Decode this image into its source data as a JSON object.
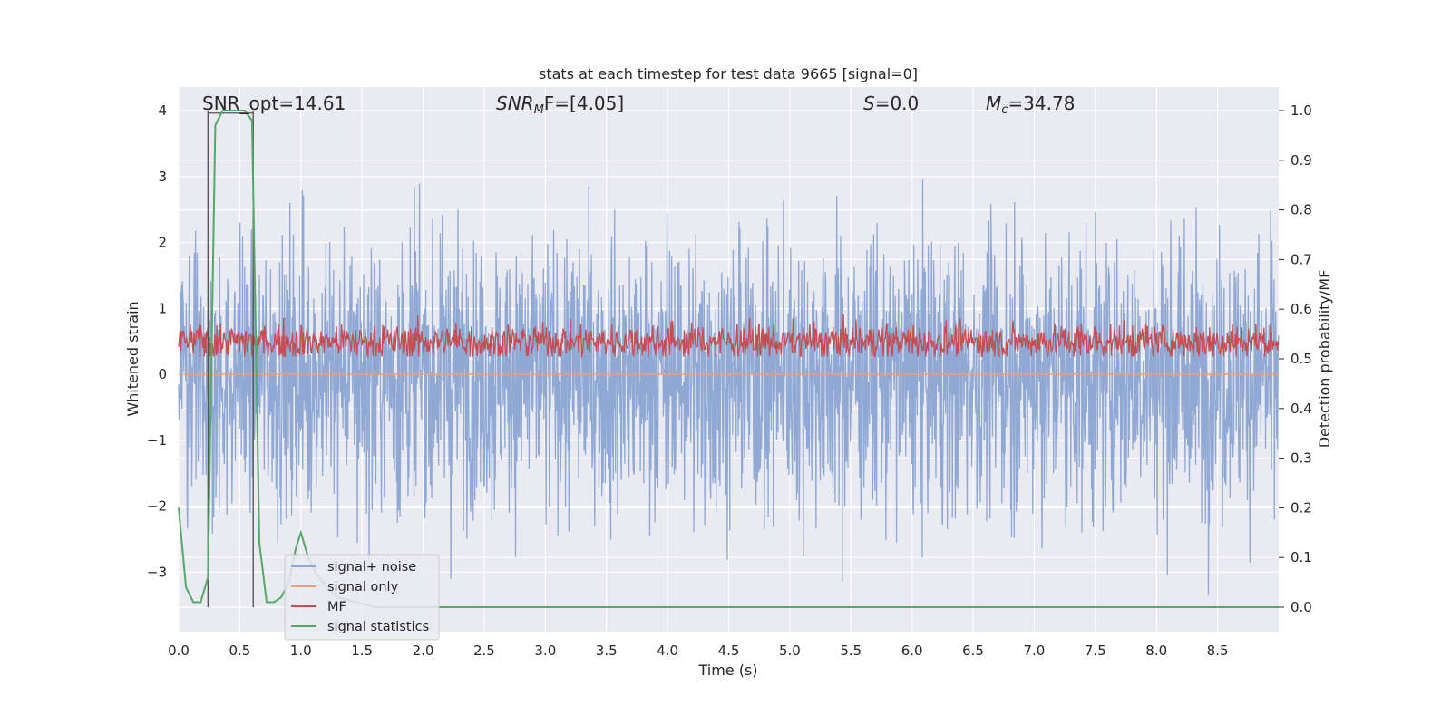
{
  "chart_data": {
    "type": "line",
    "title": "stats at each timestep for test data 9665 [signal=0]",
    "xlabel": "Time (s)",
    "ylabel": "Whitened strain",
    "ylabel_right": "Detection probability/MF",
    "xlim": [
      0.0,
      9.0
    ],
    "ylim": [
      -3.87,
      4.35
    ],
    "ylim_right": [
      -0.05,
      1.05
    ],
    "x_ticks": [
      "0.0",
      "0.5",
      "1.0",
      "1.5",
      "2.0",
      "2.5",
      "3.0",
      "3.5",
      "4.0",
      "4.5",
      "5.0",
      "5.5",
      "6.0",
      "6.5",
      "7.0",
      "7.5",
      "8.0",
      "8.5"
    ],
    "y_ticks": [
      "4",
      "3",
      "2",
      "1",
      "0",
      "−1",
      "−2",
      "−3"
    ],
    "y_ticks_right": [
      "1.0",
      "0.9",
      "0.8",
      "0.7",
      "0.6",
      "0.5",
      "0.4",
      "0.3",
      "0.2",
      "0.1",
      "0.0"
    ],
    "grid": true,
    "legend_position": "lower-left",
    "annotations": {
      "snr_opt": "SNR_opt=14.61",
      "snr_mf_prefix": "SNR",
      "snr_mf_sub": "M",
      "snr_mf_suffix": "F=[4.05]",
      "s_var": "S",
      "s_val": "=0.0",
      "mc_var": "M",
      "mc_sub": "c",
      "mc_val": "=34.78"
    },
    "vlines_x": [
      0.24,
      0.61
    ],
    "series": [
      {
        "name": "signal+ noise",
        "color": "#8fa8d4",
        "description_range": [
          -3.5,
          4.0
        ],
        "n_points": 2600
      },
      {
        "name": "signal only",
        "color": "#e8a07e",
        "values_const": 0.0
      },
      {
        "name": "MF",
        "color": "#c44e52",
        "axis": "right",
        "description_range": [
          0.48,
          0.6
        ],
        "n_points": 1500
      },
      {
        "name": "signal statistics",
        "color": "#55a868",
        "axis": "right",
        "x": [
          0.0,
          0.06,
          0.12,
          0.18,
          0.24,
          0.3,
          0.36,
          0.42,
          0.48,
          0.54,
          0.6,
          0.66,
          0.72,
          0.78,
          0.84,
          0.9,
          0.96,
          1.0,
          1.06,
          1.12,
          1.18,
          1.3,
          1.45,
          1.6,
          2.0,
          9.0
        ],
        "values": [
          0.2,
          0.04,
          0.01,
          0.01,
          0.06,
          0.97,
          1.0,
          1.0,
          1.0,
          1.0,
          0.98,
          0.13,
          0.01,
          0.01,
          0.02,
          0.05,
          0.12,
          0.15,
          0.1,
          0.07,
          0.05,
          0.02,
          0.01,
          0.0,
          0.0,
          0.0
        ]
      }
    ]
  }
}
